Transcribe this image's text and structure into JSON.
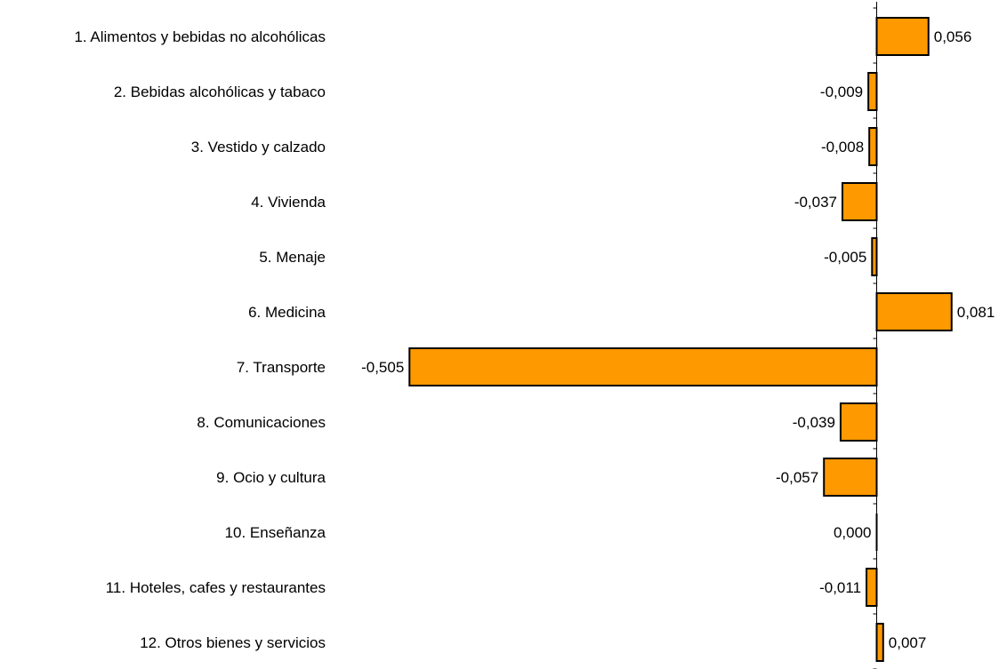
{
  "chart_data": {
    "type": "bar",
    "orientation": "horizontal",
    "categories": [
      "1. Alimentos y bebidas no alcohólicas",
      "2. Bebidas alcohólicas y tabaco",
      "3. Vestido y calzado",
      "4. Vivienda",
      "5. Menaje",
      "6. Medicina",
      "7. Transporte",
      "8. Comunicaciones",
      "9. Ocio y cultura",
      "10. Enseñanza",
      "11. Hoteles, cafes y restaurantes",
      "12. Otros bienes y servicios"
    ],
    "values": [
      0.056,
      -0.009,
      -0.008,
      -0.037,
      -0.005,
      0.081,
      -0.505,
      -0.039,
      -0.057,
      0.0,
      -0.011,
      0.007
    ],
    "data_labels": [
      "0,056",
      "-0,009",
      "-0,008",
      "-0,037",
      "-0,005",
      "0,081",
      "-0,505",
      "-0,039",
      "-0,057",
      "0,000",
      "-0,011",
      "0,007"
    ],
    "bar_color": "#FF9900",
    "bar_edge_color": "#000000",
    "title": "",
    "xlabel": "",
    "ylabel": "",
    "grid": false,
    "legend": "none"
  }
}
